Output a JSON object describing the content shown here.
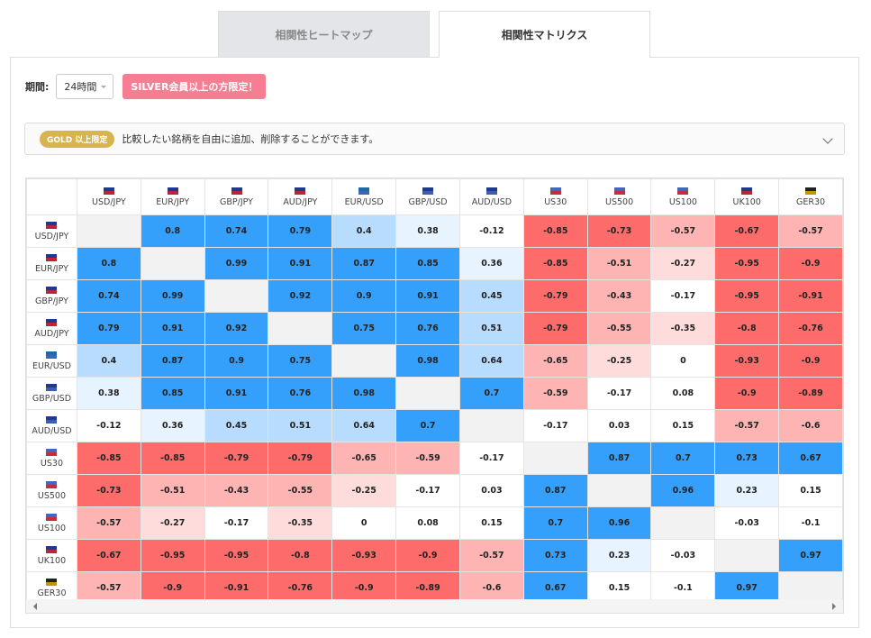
{
  "tabs": [
    "相関性ヒートマップ",
    "相関性マトリクス"
  ],
  "period": {
    "label": "期間:",
    "value": "24時間"
  },
  "badge": "SILVER会員以上の方限定！",
  "notice": {
    "badge": "GOLD 以上限定",
    "text": "比較したい銘柄を自由に追加、削除することができます。"
  },
  "table": {
    "columns": [
      "USD/JPY",
      "EUR/JPY",
      "GBP/JPY",
      "AUD/JPY",
      "EUR/USD",
      "GBP/USD",
      "AUD/USD",
      "US30",
      "US500",
      "US100",
      "UK100",
      "GER30"
    ],
    "rows": [
      {
        "label": "USD/JPY",
        "values": [
          null,
          0.8,
          0.74,
          0.79,
          0.4,
          0.38,
          -0.12,
          -0.85,
          -0.73,
          -0.57,
          -0.67,
          -0.57
        ]
      },
      {
        "label": "EUR/JPY",
        "values": [
          0.8,
          null,
          0.99,
          0.91,
          0.87,
          0.85,
          0.36,
          -0.85,
          -0.51,
          -0.27,
          -0.95,
          -0.9
        ]
      },
      {
        "label": "GBP/JPY",
        "values": [
          0.74,
          0.99,
          null,
          0.92,
          0.9,
          0.91,
          0.45,
          -0.79,
          -0.43,
          -0.17,
          -0.95,
          -0.91
        ]
      },
      {
        "label": "AUD/JPY",
        "values": [
          0.79,
          0.91,
          0.92,
          null,
          0.75,
          0.76,
          0.51,
          -0.79,
          -0.55,
          -0.35,
          -0.8,
          -0.76
        ]
      },
      {
        "label": "EUR/USD",
        "values": [
          0.4,
          0.87,
          0.9,
          0.75,
          null,
          0.98,
          0.64,
          -0.65,
          -0.25,
          0,
          -0.93,
          -0.9
        ]
      },
      {
        "label": "GBP/USD",
        "values": [
          0.38,
          0.85,
          0.91,
          0.76,
          0.98,
          null,
          0.7,
          -0.59,
          -0.17,
          0.08,
          -0.9,
          -0.89
        ]
      },
      {
        "label": "AUD/USD",
        "values": [
          -0.12,
          0.36,
          0.45,
          0.51,
          0.64,
          0.7,
          null,
          -0.17,
          0.03,
          0.15,
          -0.57,
          -0.6
        ]
      },
      {
        "label": "US30",
        "values": [
          -0.85,
          -0.85,
          -0.79,
          -0.79,
          -0.65,
          -0.59,
          -0.17,
          null,
          0.87,
          0.7,
          0.73,
          0.67
        ]
      },
      {
        "label": "US500",
        "values": [
          -0.73,
          -0.51,
          -0.43,
          -0.55,
          -0.25,
          -0.17,
          0.03,
          0.87,
          null,
          0.96,
          0.23,
          0.15
        ]
      },
      {
        "label": "US100",
        "values": [
          -0.57,
          -0.27,
          -0.17,
          -0.35,
          0,
          0.08,
          0.15,
          0.7,
          0.96,
          null,
          -0.03,
          -0.1
        ]
      },
      {
        "label": "UK100",
        "values": [
          -0.67,
          -0.95,
          -0.95,
          -0.8,
          -0.93,
          -0.9,
          -0.57,
          0.73,
          0.23,
          -0.03,
          null,
          0.97
        ]
      },
      {
        "label": "GER30",
        "values": [
          -0.57,
          -0.9,
          -0.91,
          -0.76,
          -0.9,
          -0.89,
          -0.6,
          0.67,
          0.15,
          -0.1,
          0.97,
          null
        ]
      }
    ]
  }
}
